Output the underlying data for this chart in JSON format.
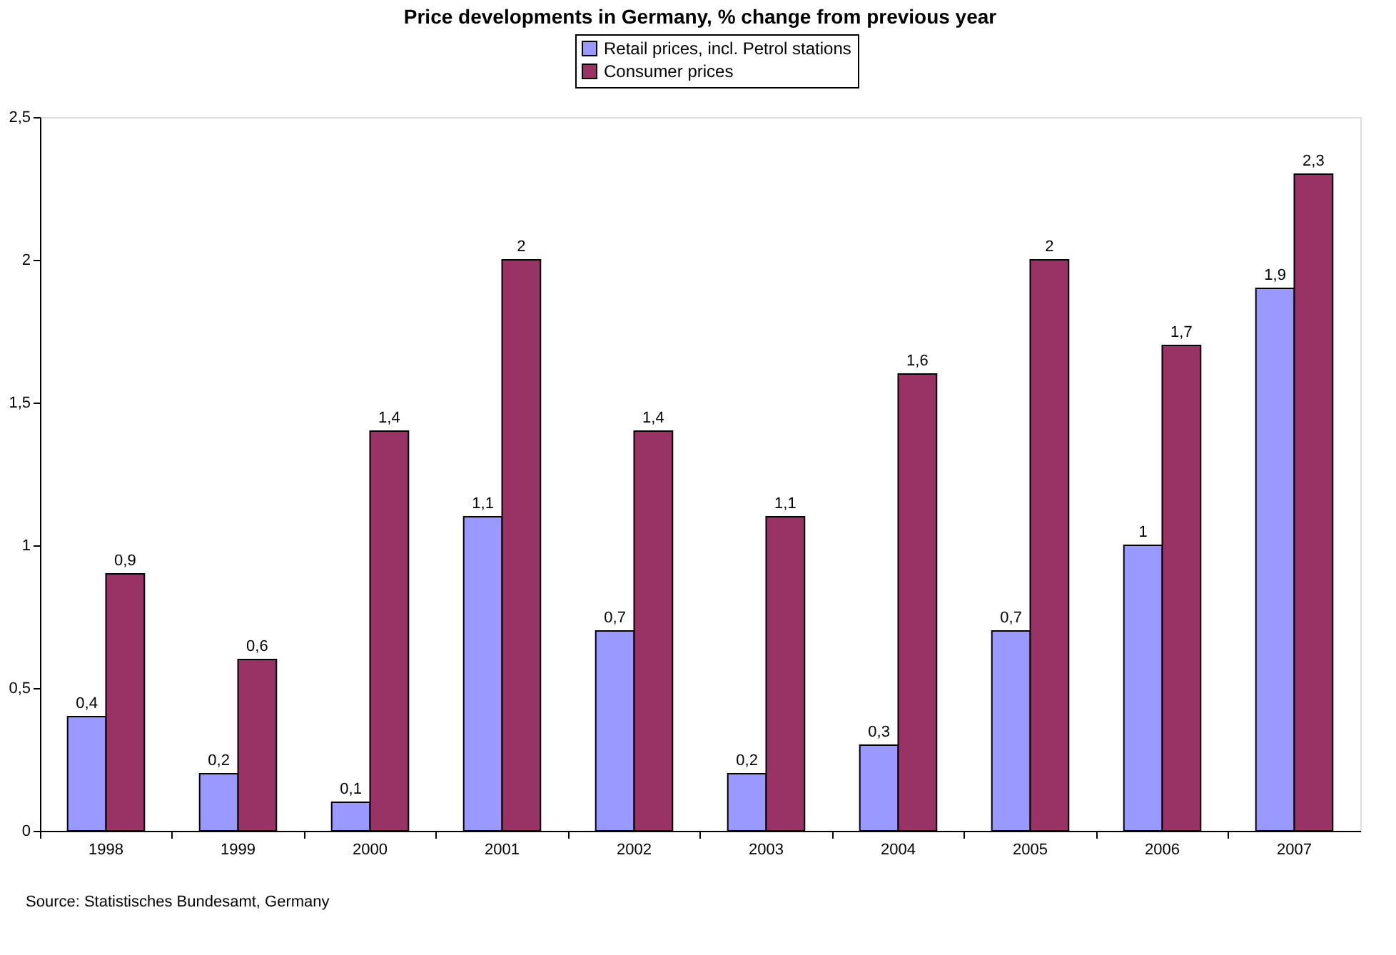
{
  "chart_data": {
    "type": "bar",
    "title": "Price developments in Germany, % change from previous year",
    "categories": [
      "1998",
      "1999",
      "2000",
      "2001",
      "2002",
      "2003",
      "2004",
      "2005",
      "2006",
      "2007"
    ],
    "series": [
      {
        "name": "Retail prices, incl. Petrol stations",
        "color": "#9999ff",
        "values": [
          0.4,
          0.2,
          0.1,
          1.1,
          0.7,
          0.2,
          0.3,
          0.7,
          1.0,
          1.9
        ],
        "value_labels": [
          "0,4",
          "0,2",
          "0,1",
          "1,1",
          "0,7",
          "0,2",
          "0,3",
          "0,7",
          "1",
          "1,9"
        ]
      },
      {
        "name": "Consumer prices",
        "color": "#993366",
        "values": [
          0.9,
          0.6,
          1.4,
          2.0,
          1.4,
          1.1,
          1.6,
          2.0,
          1.7,
          2.3
        ],
        "value_labels": [
          "0,9",
          "0,6",
          "1,4",
          "2",
          "1,4",
          "1,1",
          "1,6",
          "2",
          "1,7",
          "2,3"
        ]
      }
    ],
    "ylim": [
      0,
      2.5
    ],
    "yticks": [
      0,
      {
        "value": 0.5,
        "label": "0,5"
      },
      1,
      {
        "value": 1.5,
        "label": "1,5"
      },
      2,
      {
        "value": 2.5,
        "label": "2,5"
      }
    ],
    "grid": false,
    "legend": "top",
    "annotations": [
      "Source: Statistisches Bundesamt, Germany"
    ]
  }
}
